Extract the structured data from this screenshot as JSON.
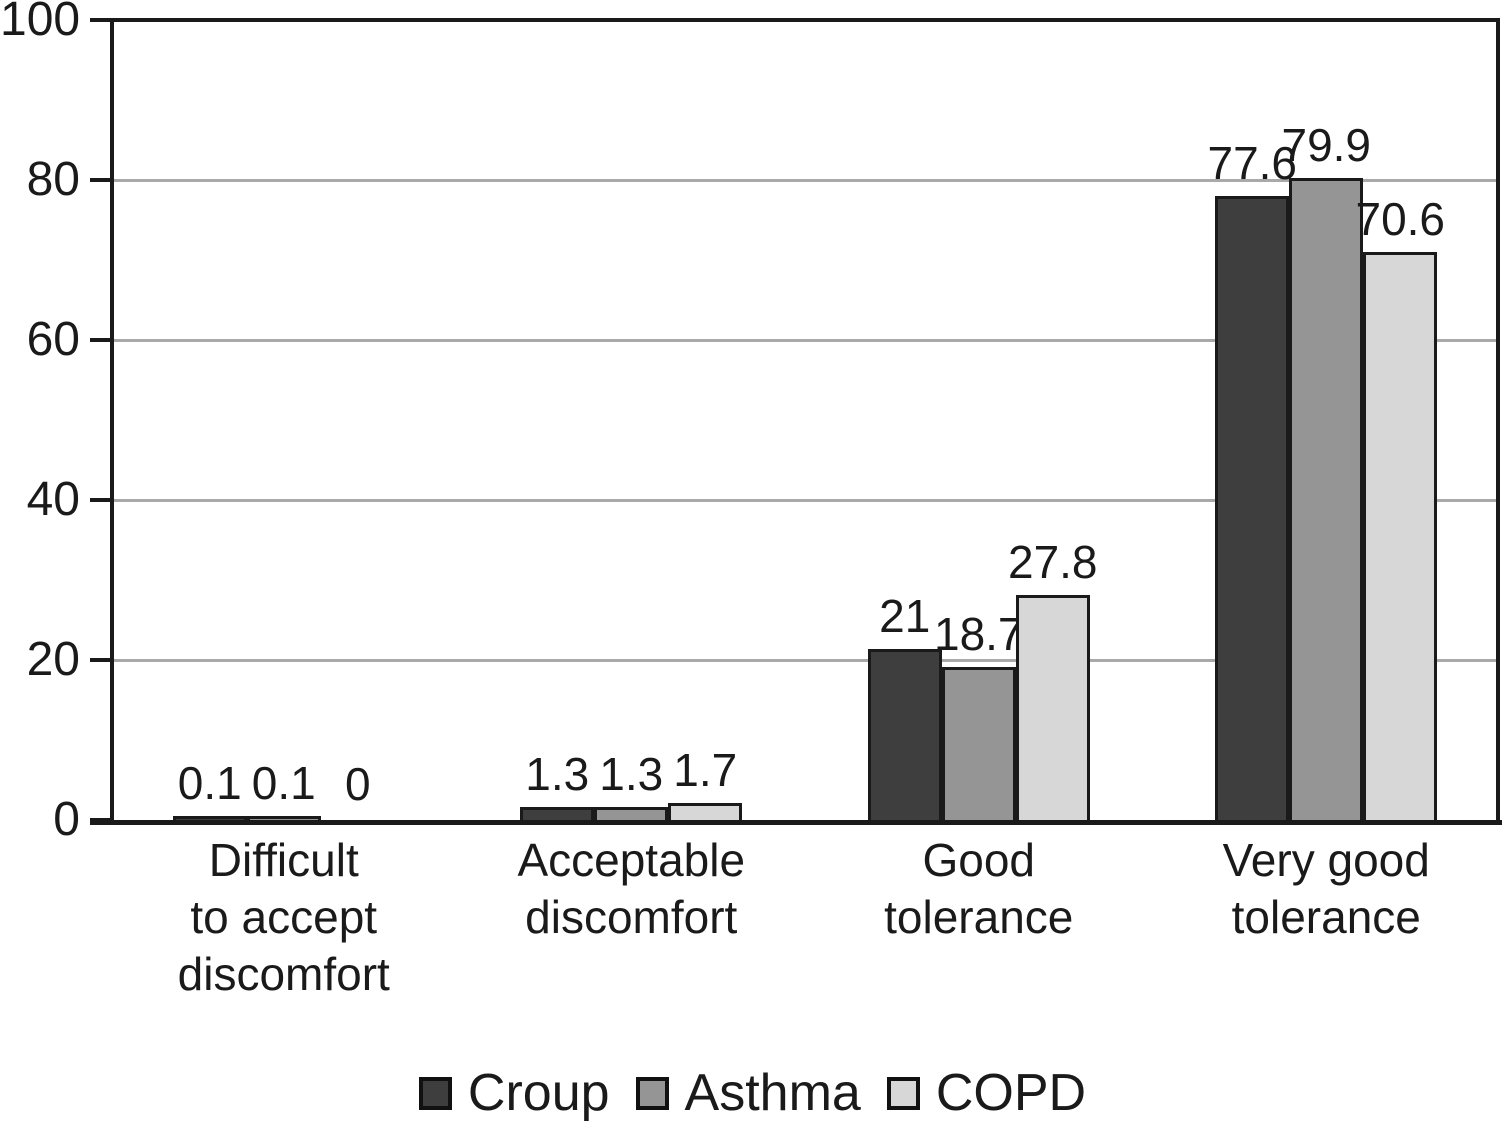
{
  "chart_data": {
    "type": "bar",
    "title": "",
    "xlabel": "",
    "ylabel": "",
    "categories": [
      [
        "Difficult",
        "to accept",
        "discomfort"
      ],
      [
        "Acceptable",
        "discomfort"
      ],
      [
        "Good",
        "tolerance"
      ],
      [
        "Very good",
        "tolerance"
      ]
    ],
    "series": [
      {
        "name": "Croup",
        "color": "#3e3e3e",
        "values": [
          0.1,
          1.3,
          21,
          77.6
        ],
        "value_labels": [
          "0.1",
          "1.3",
          "21",
          "77.6"
        ]
      },
      {
        "name": "Asthma",
        "color": "#959595",
        "values": [
          0.1,
          1.3,
          18.7,
          79.9
        ],
        "value_labels": [
          "0.1",
          "1.3",
          "18.7",
          "79.9"
        ]
      },
      {
        "name": "COPD",
        "color": "#d7d7d7",
        "values": [
          0,
          1.7,
          27.8,
          70.6
        ],
        "value_labels": [
          "0",
          "1.7",
          "27.8",
          "70.6"
        ]
      }
    ],
    "ylim": [
      0,
      100
    ],
    "yticks": [
      0,
      20,
      40,
      60,
      80,
      100
    ],
    "ytick_labels": [
      "0",
      "20",
      "40",
      "60",
      "80",
      "100"
    ],
    "grid": true,
    "legend_position": "bottom",
    "colors": {
      "axis": "#1a1a1a",
      "grid": "#a9a9a9",
      "bar_border": "#1a1a1a",
      "text": "#1a1a1a",
      "background": "#ffffff",
      "legend_swatch_border": "#111111"
    }
  }
}
